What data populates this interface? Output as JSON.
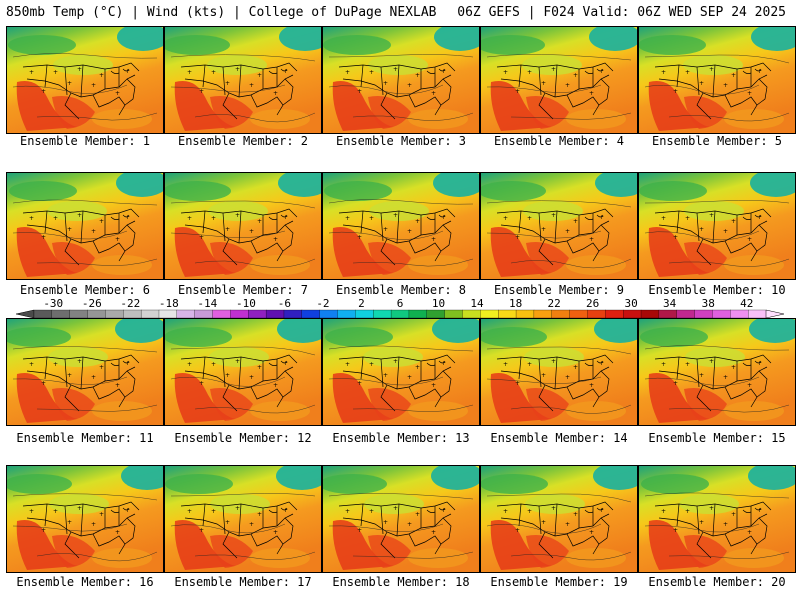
{
  "header": {
    "left": "850mb Temp (°C) | Wind (kts) | College of DuPage NEXLAB",
    "right": "06Z GEFS | F024 Valid: 06Z WED SEP 24 2025"
  },
  "panels": [
    {
      "label": "Ensemble Member: 1"
    },
    {
      "label": "Ensemble Member: 2"
    },
    {
      "label": "Ensemble Member: 3"
    },
    {
      "label": "Ensemble Member: 4"
    },
    {
      "label": "Ensemble Member: 5"
    },
    {
      "label": "Ensemble Member: 6"
    },
    {
      "label": "Ensemble Member: 7"
    },
    {
      "label": "Ensemble Member: 8"
    },
    {
      "label": "Ensemble Member: 9"
    },
    {
      "label": "Ensemble Member: 10"
    },
    {
      "label": "Ensemble Member: 11"
    },
    {
      "label": "Ensemble Member: 12"
    },
    {
      "label": "Ensemble Member: 13"
    },
    {
      "label": "Ensemble Member: 14"
    },
    {
      "label": "Ensemble Member: 15"
    },
    {
      "label": "Ensemble Member: 16"
    },
    {
      "label": "Ensemble Member: 17"
    },
    {
      "label": "Ensemble Member: 18"
    },
    {
      "label": "Ensemble Member: 19"
    },
    {
      "label": "Ensemble Member: 20"
    }
  ],
  "colorbar": {
    "ticks": [
      "-30",
      "-26",
      "-22",
      "-18",
      "-14",
      "-10",
      "-6",
      "-2",
      "2",
      "6",
      "10",
      "14",
      "18",
      "22",
      "26",
      "30",
      "34",
      "38",
      "42"
    ],
    "colors": [
      "#5a5a5a",
      "#6e6e6e",
      "#828282",
      "#969696",
      "#aaaaaa",
      "#bebebe",
      "#d2d2d2",
      "#e6e6e6",
      "#d8b4e8",
      "#c89ad8",
      "#e060e0",
      "#c030d0",
      "#9020c0",
      "#6010b0",
      "#3020c0",
      "#1040e0",
      "#1080f0",
      "#10b0f0",
      "#10d0e0",
      "#10d8b0",
      "#10c880",
      "#10b050",
      "#30a030",
      "#80c020",
      "#c8e020",
      "#f0f020",
      "#f8d818",
      "#f8c010",
      "#f8a010",
      "#f08010",
      "#f06010",
      "#e84010",
      "#e02010",
      "#c81010",
      "#a80808",
      "#b01848",
      "#c02890",
      "#d040c0",
      "#e060e0",
      "#f090f0",
      "#f8c0f8"
    ]
  }
}
